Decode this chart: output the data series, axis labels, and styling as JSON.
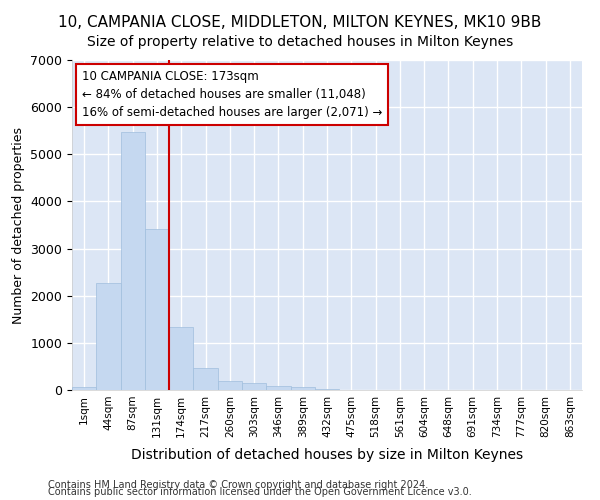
{
  "title1": "10, CAMPANIA CLOSE, MIDDLETON, MILTON KEYNES, MK10 9BB",
  "title2": "Size of property relative to detached houses in Milton Keynes",
  "xlabel": "Distribution of detached houses by size in Milton Keynes",
  "ylabel": "Number of detached properties",
  "footnote1": "Contains HM Land Registry data © Crown copyright and database right 2024.",
  "footnote2": "Contains public sector information licensed under the Open Government Licence v3.0.",
  "annotation_title": "10 CAMPANIA CLOSE: 173sqm",
  "annotation_line1": "← 84% of detached houses are smaller (11,048)",
  "annotation_line2": "16% of semi-detached houses are larger (2,071) →",
  "bar_labels": [
    "1sqm",
    "44sqm",
    "87sqm",
    "131sqm",
    "174sqm",
    "217sqm",
    "260sqm",
    "303sqm",
    "346sqm",
    "389sqm",
    "432sqm",
    "475sqm",
    "518sqm",
    "561sqm",
    "604sqm",
    "648sqm",
    "691sqm",
    "734sqm",
    "777sqm",
    "820sqm",
    "863sqm"
  ],
  "bar_values": [
    65,
    2270,
    5470,
    3420,
    1330,
    460,
    185,
    145,
    75,
    55,
    30,
    0,
    0,
    0,
    0,
    0,
    0,
    0,
    0,
    0,
    0
  ],
  "bar_color": "#c5d8f0",
  "bar_edge_color": "#a0bedd",
  "vline_x_idx": 4,
  "vline_color": "#cc0000",
  "ylim": [
    0,
    7000
  ],
  "yticks": [
    0,
    1000,
    2000,
    3000,
    4000,
    5000,
    6000,
    7000
  ],
  "fig_bg_color": "#ffffff",
  "plot_bg_color": "#dce6f5",
  "grid_color": "#ffffff",
  "annotation_box_color": "#ffffff",
  "annotation_box_edge": "#cc0000",
  "title1_fontsize": 11,
  "title2_fontsize": 10,
  "xlabel_fontsize": 10,
  "ylabel_fontsize": 9,
  "footnote_fontsize": 7
}
